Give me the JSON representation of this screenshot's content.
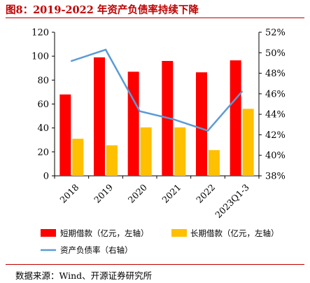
{
  "title": "图8：2019-2022 年资产负债率持续下降",
  "source": "数据来源：Wind、开源证券研究所",
  "chart_data": {
    "type": "bar",
    "categories": [
      "2018",
      "2019",
      "2020",
      "2021",
      "2022",
      "2023Q1-3"
    ],
    "series": [
      {
        "name": "短期借款（亿元，左轴）",
        "type": "bar",
        "axis": "left",
        "color": "#ff0000",
        "values": [
          68,
          99,
          87,
          96,
          86.5,
          96.5
        ]
      },
      {
        "name": "长期借款（亿元，左轴）",
        "type": "bar",
        "axis": "left",
        "color": "#ffc000",
        "values": [
          31,
          25.5,
          40.5,
          40.5,
          21.5,
          56
        ]
      },
      {
        "name": "资产负债率（右轴）",
        "type": "line",
        "axis": "right",
        "color": "#5b9bd5",
        "values": [
          49.2,
          50.3,
          44.3,
          43.5,
          42.4,
          46.2
        ]
      }
    ],
    "yleft": {
      "lim": [
        0,
        120
      ],
      "ticks": [
        "0",
        "20",
        "40",
        "60",
        "80",
        "100",
        "120"
      ]
    },
    "yright": {
      "lim": [
        38,
        52
      ],
      "ticks": [
        "38%",
        "40%",
        "42%",
        "44%",
        "46%",
        "48%",
        "50%",
        "52%"
      ]
    },
    "legend": "bottom"
  }
}
